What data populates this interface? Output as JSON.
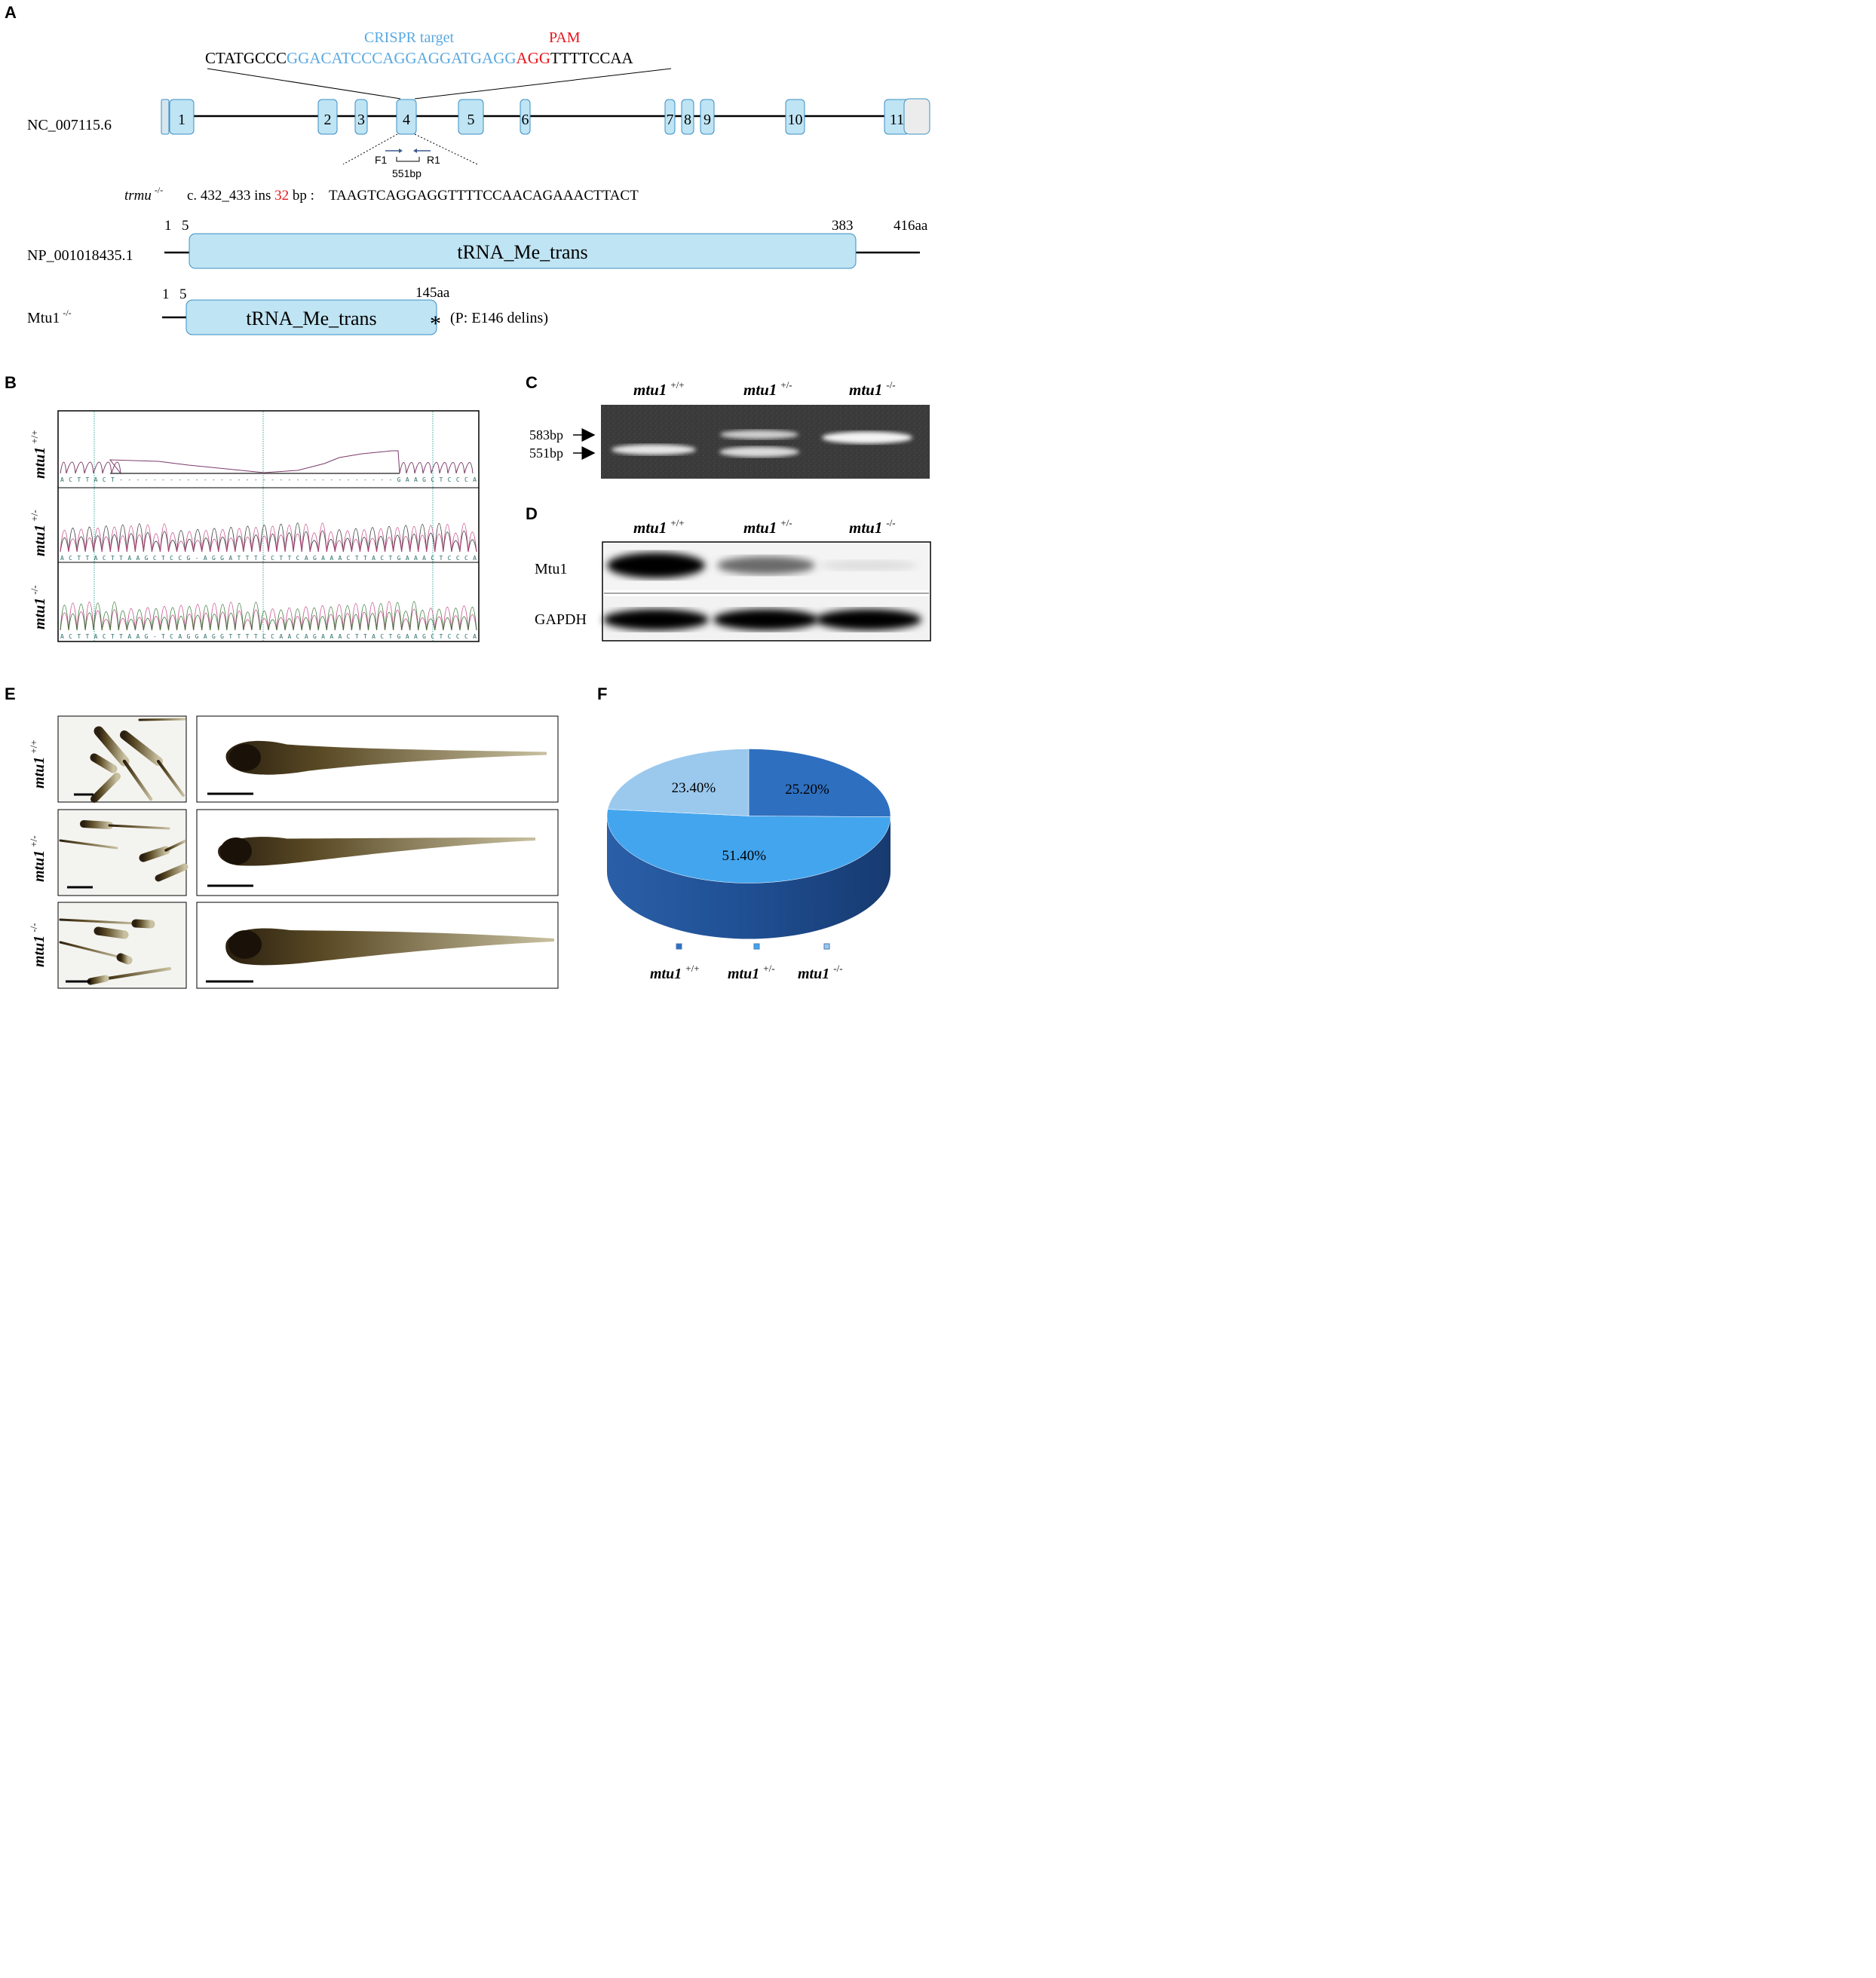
{
  "colors": {
    "crispr_blue": "#5aa9e0",
    "pam_red": "#e8151b",
    "exon_fill": "#bfe4f3",
    "exon_stroke": "#3b8fc4",
    "domain_fill": "#bfe4f3",
    "gel_bg": "#3d3d3d",
    "pie_wt": "#2f6fbf",
    "pie_het": "#43a5ee",
    "pie_ko": "#9bc9ee"
  },
  "panels": {
    "A": "A",
    "B": "B",
    "C": "C",
    "D": "D",
    "E": "E",
    "F": "F"
  },
  "panelA": {
    "crispr_label": "CRISPR target",
    "pam_label": "PAM",
    "seq_prefix": "CTATGCCC",
    "seq_target": "GGACATCCCAGGAGGATGAGG",
    "seq_pam": "AGG",
    "seq_suffix": "TTTTCCAA",
    "gene_accession": "NC_007115.6",
    "exons": [
      "1",
      "2",
      "3",
      "4",
      "5",
      "6",
      "7",
      "8",
      "9",
      "10",
      "11"
    ],
    "primer_f": "F1",
    "primer_r": "R1",
    "amplicon": "551bp",
    "mutant_gene": "trmu",
    "mutant_sup": "-/-",
    "mutation_pre": "c. 432_433 ins ",
    "mutation_num": "32",
    "mutation_post": " bp :",
    "insert_seq": "TAAGTCAGGAGGTTTTCCAACAGAAACTTACT",
    "protein_accession": "NP_001018435.1",
    "wt_pos1": "1",
    "wt_pos5": "5",
    "wt_pos383": "383",
    "wt_len": "416aa",
    "domain_name": "tRNA_Me_trans",
    "mut_protein": "Mtu1",
    "mut_sup": "-/-",
    "mut_pos1": "1",
    "mut_pos5": "5",
    "mut_len": "145aa",
    "stop_mark": "*",
    "mut_note": "(P: E146 delins)"
  },
  "panelB": {
    "gene": "mtu1",
    "rows": [
      {
        "sup": "+/+",
        "seq": "ACTTACT---------------------------------GAAGCTCCCA"
      },
      {
        "sup": "+/-",
        "seq": "ACTTACTTAAGCTCCG-AGGATTTCCTTCAGAAACTTACTGAAACTCCCA"
      },
      {
        "sup": "-/-",
        "seq": "ACTTACTTAAG-TCAGGAGGTTTTCCAACAGAAACTTACTGAAGCTCCCA"
      }
    ]
  },
  "panelC": {
    "gene": "mtu1",
    "lanes": [
      "+/+",
      "+/-",
      "-/-"
    ],
    "marker_upper": "583bp",
    "marker_lower": "551bp"
  },
  "panelD": {
    "gene": "mtu1",
    "lanes": [
      "+/+",
      "+/-",
      "-/-"
    ],
    "row1_label": "Mtu1",
    "row2_label": "GAPDH",
    "row1_intensity": [
      1.0,
      0.55,
      0.05
    ],
    "row2_intensity": [
      1.0,
      1.0,
      1.0
    ]
  },
  "panelE": {
    "gene": "mtu1",
    "rows": [
      "+/+",
      "+/-",
      "-/-"
    ]
  },
  "chart_data": {
    "type": "pie",
    "title": "",
    "slices": [
      {
        "name": "mtu1 +/+",
        "value": 25.2,
        "label": "25.20%"
      },
      {
        "name": "mtu1 +/-",
        "value": 51.4,
        "label": "51.40%"
      },
      {
        "name": "mtu1 -/-",
        "value": 23.4,
        "label": "23.40%"
      }
    ],
    "legend_gene": "mtu1",
    "legend_sups": [
      "+/+",
      "+/-",
      "-/-"
    ],
    "legend_placement": "bottom"
  }
}
